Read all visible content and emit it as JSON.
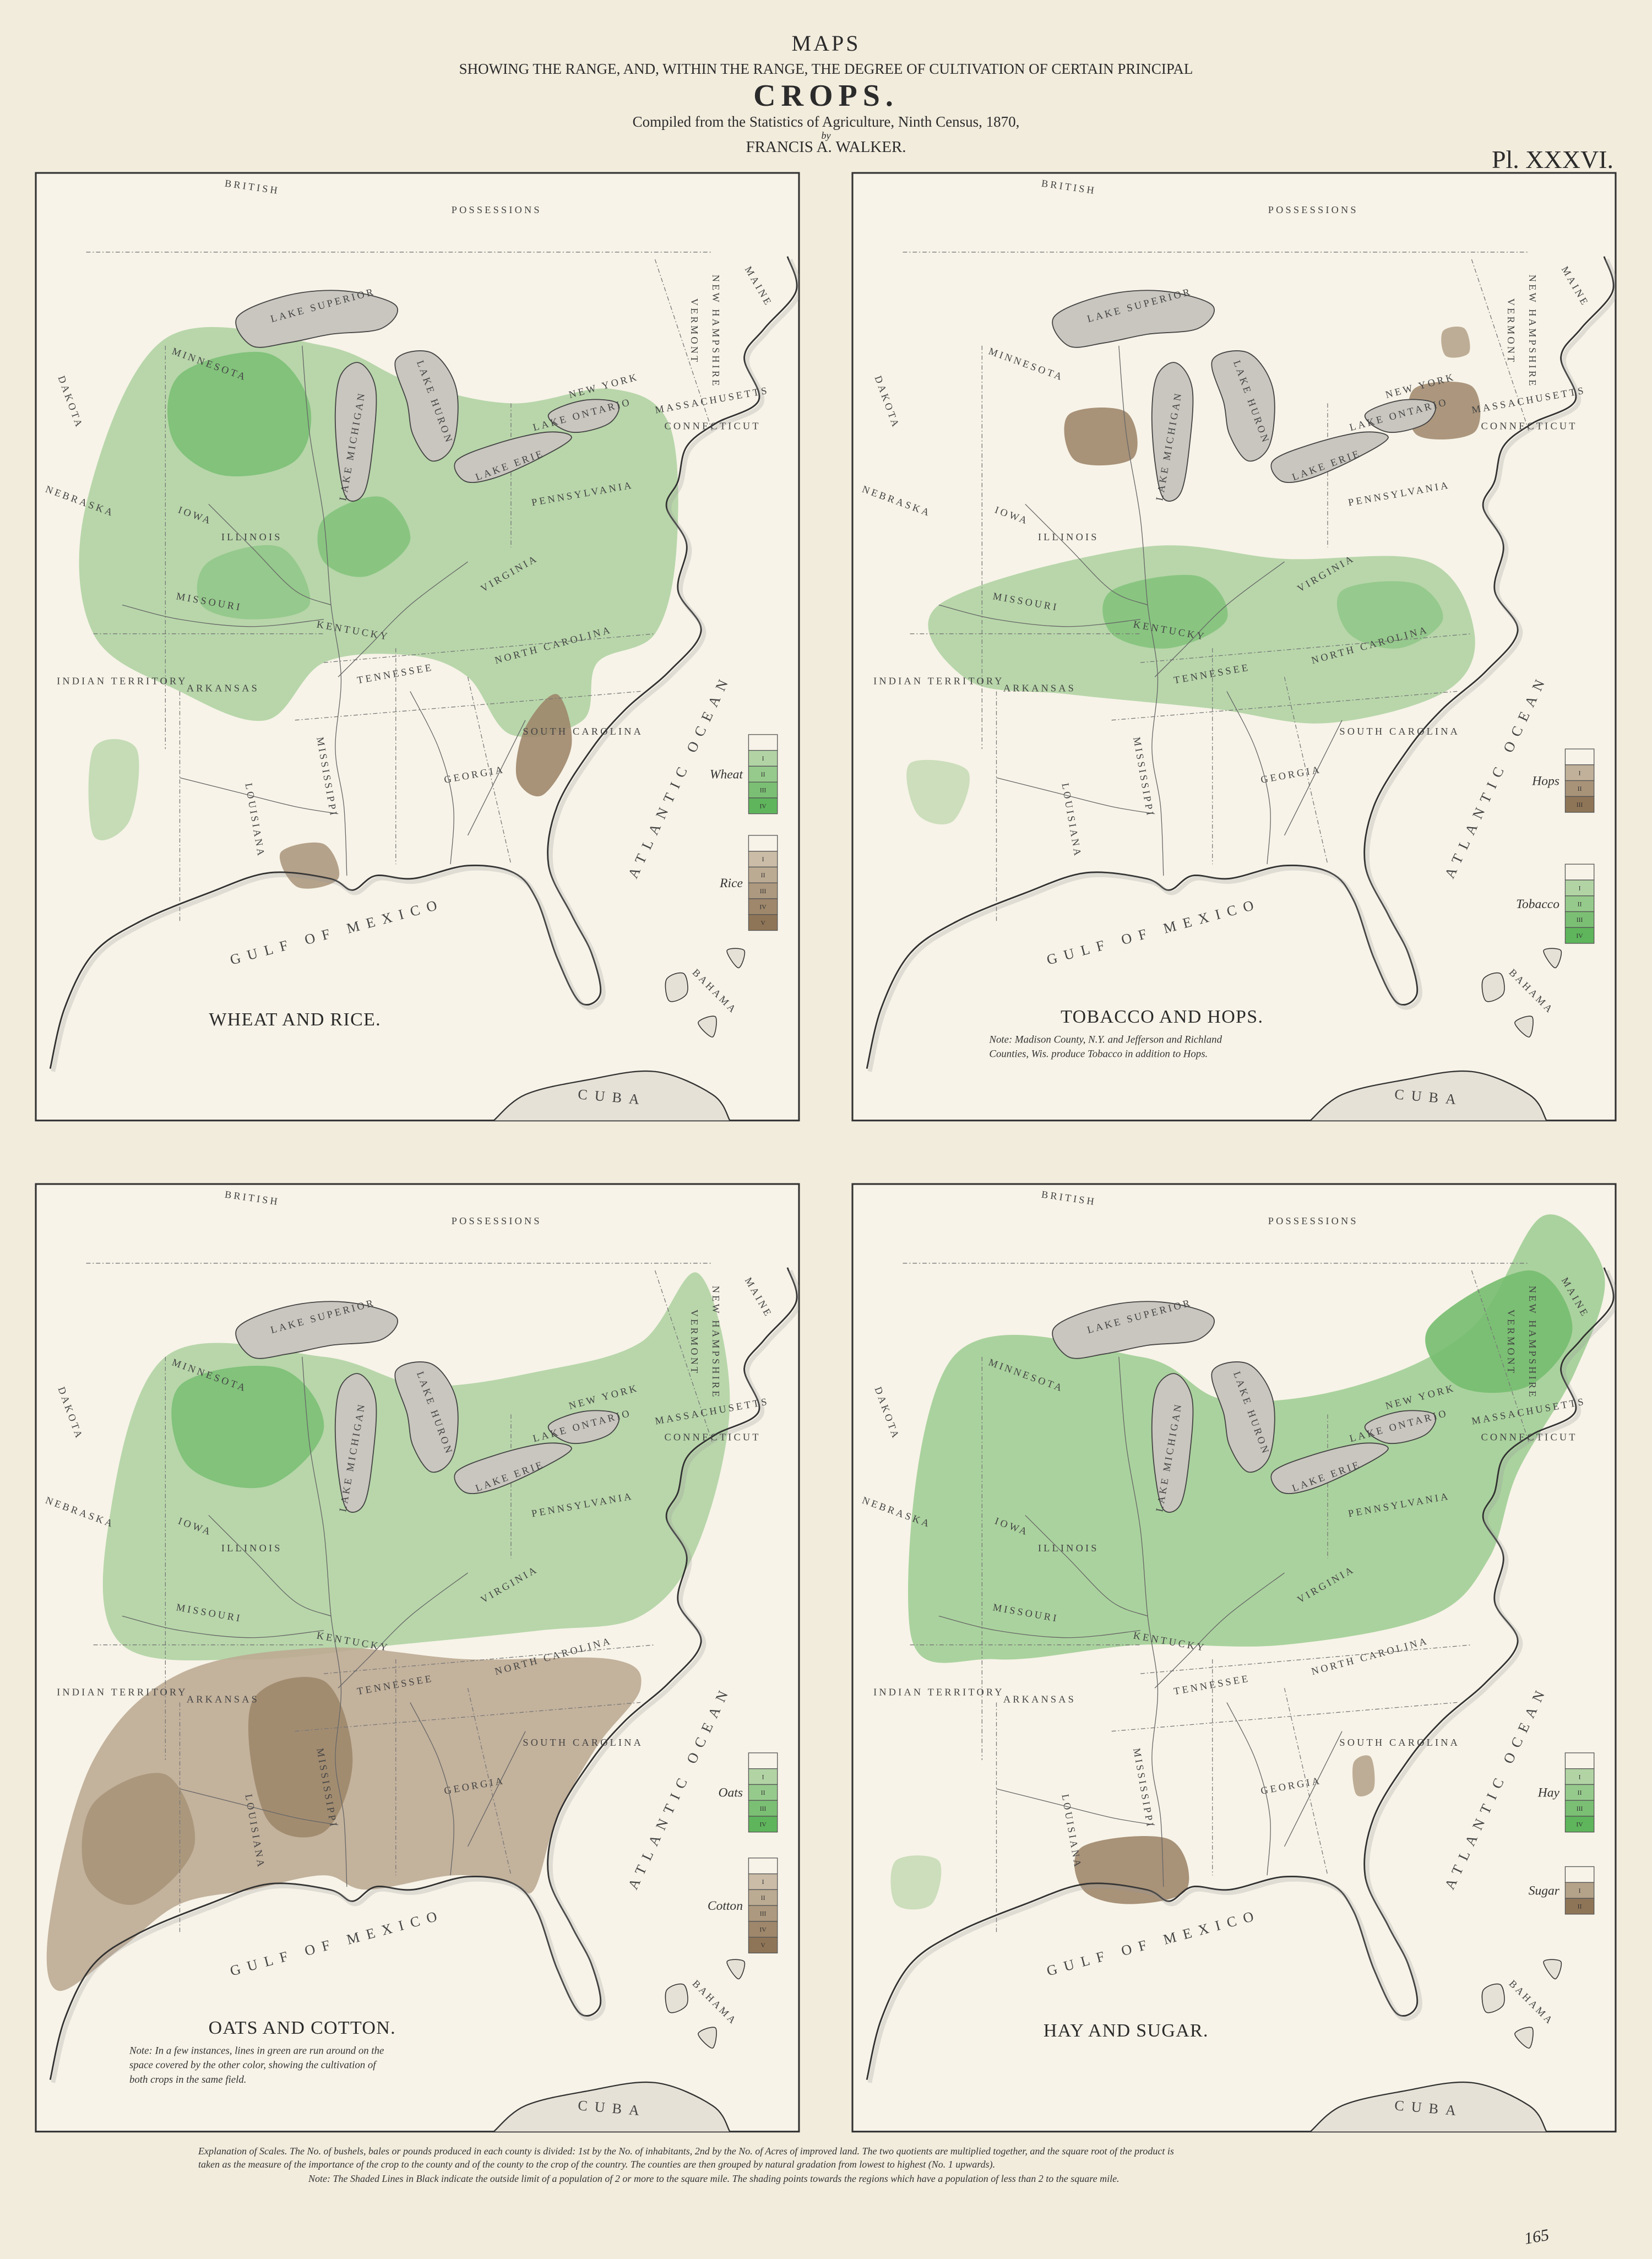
{
  "header": {
    "title": "MAPS",
    "subtitle": "SHOWING THE RANGE, AND, WITHIN THE RANGE, THE DEGREE OF CULTIVATION OF CERTAIN PRINCIPAL",
    "crops": "CROPS.",
    "compiled": "Compiled from the Statistics of Agriculture, Ninth Census, 1870,",
    "by": "by",
    "author": "FRANCIS A. WALKER.",
    "plate": "Pl. XXXVI."
  },
  "base_map": {
    "labels": [
      "BRITISH",
      "POSSESSIONS",
      "LAKE SUPERIOR",
      "LAKE MICHIGAN",
      "LAKE HURON",
      "LAKE ERIE",
      "LAKE ONTARIO",
      "MAINE",
      "VERMONT",
      "NEW HAMPSHIRE",
      "MASSACHUSETTS",
      "CONNECTICUT",
      "NEW YORK",
      "PENNSYLVANIA",
      "MINNESOTA",
      "IOWA",
      "ILLINOIS",
      "MISSOURI",
      "KENTUCKY",
      "VIRGINIA",
      "TENNESSEE",
      "NORTH CAROLINA",
      "SOUTH CAROLINA",
      "GEORGIA",
      "ARKANSAS",
      "MISSISSIPPI",
      "LOUISIANA",
      "INDIAN TERRITORY",
      "DAKOTA",
      "NEBRASKA",
      "GULF OF MEXICO",
      "ATLANTIC OCEAN",
      "BAHAMA",
      "CUBA"
    ]
  },
  "maps": [
    {
      "title": "WHEAT AND RICE.",
      "legends": [
        {
          "name": "Wheat",
          "color": "#5fb55c",
          "levels": [
            "I",
            "II",
            "III",
            "IV"
          ]
        },
        {
          "name": "Rice",
          "color": "#8f7557",
          "levels": [
            "I",
            "II",
            "III",
            "IV",
            "V"
          ]
        }
      ]
    },
    {
      "title": "TOBACCO AND HOPS.",
      "note": "Note: Madison County, N.Y. and Jefferson and Richland Counties, Wis. produce Tobacco in addition to Hops.",
      "legends": [
        {
          "name": "Hops",
          "color": "#8f7557",
          "levels": [
            "I",
            "II",
            "III"
          ]
        },
        {
          "name": "Tobacco",
          "color": "#5fb55c",
          "levels": [
            "I",
            "II",
            "III",
            "IV"
          ]
        }
      ]
    },
    {
      "title": "OATS AND COTTON.",
      "note": "Note: In a few instances, lines in green are run around on the space covered by the other color, showing the cultivation of both crops in the same field.",
      "legends": [
        {
          "name": "Oats",
          "color": "#5fb55c",
          "levels": [
            "I",
            "II",
            "III",
            "IV"
          ]
        },
        {
          "name": "Cotton",
          "color": "#8f7557",
          "levels": [
            "I",
            "II",
            "III",
            "IV",
            "V"
          ]
        }
      ]
    },
    {
      "title": "HAY AND SUGAR.",
      "legends": [
        {
          "name": "Hay",
          "color": "#5fb55c",
          "levels": [
            "I",
            "II",
            "III",
            "IV"
          ]
        },
        {
          "name": "Sugar",
          "color": "#8f7557",
          "levels": [
            "I",
            "II"
          ]
        }
      ]
    }
  ],
  "footer": {
    "explanation": "Explanation of Scales. The No. of bushels, bales or pounds produced in each county is divided: 1st by the No. of inhabitants, 2nd by the No. of Acres of improved land. The two quotients are multiplied together, and the square root of the product is taken as the measure of the importance of the crop to the county and of the county to the crop of the country. The counties are then grouped by natural gradation from lowest to highest (No. 1 upwards).",
    "note": "Note: The Shaded Lines in Black indicate the outside limit of a population of 2 or more to the square mile. The shading points towards the regions which have a population of less than 2 to the square mile.",
    "page_number": "165"
  }
}
